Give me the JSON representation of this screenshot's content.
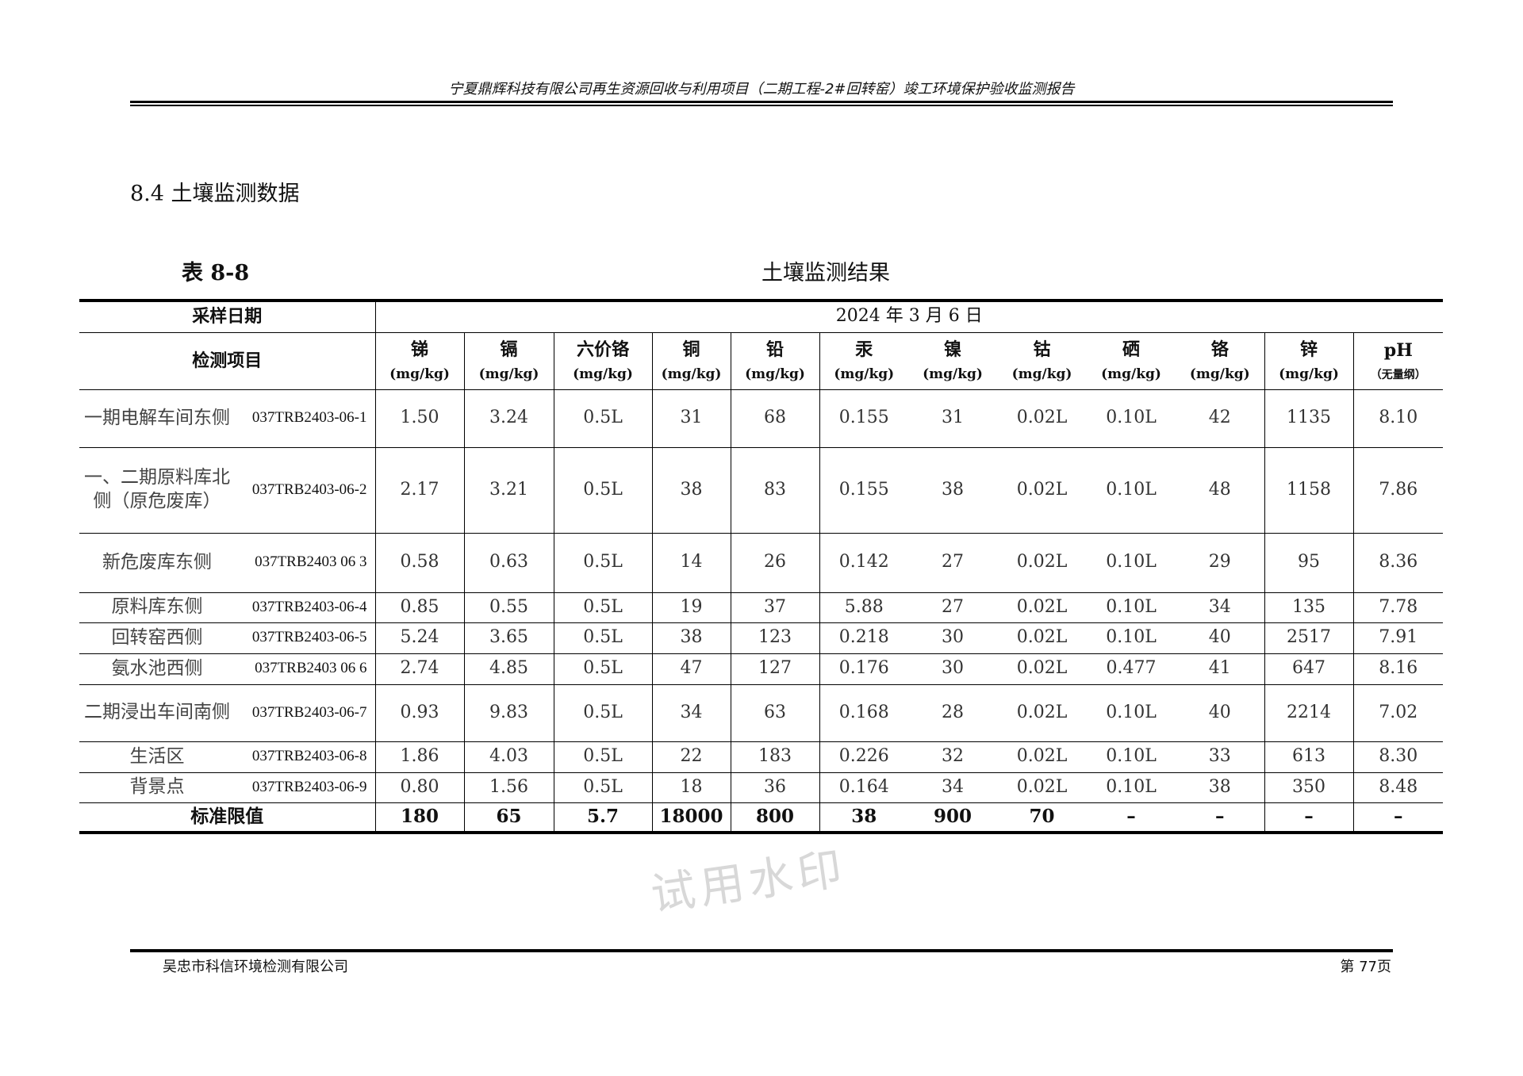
{
  "header": {
    "title": "宁夏鼎辉科技有限公司再生资源回收与利用项目（二期工程-2#回转窑）竣工环境保护验收监测报告"
  },
  "section_title": "8.4 土壤监测数据",
  "table_caption": {
    "number": "表 8-8",
    "title": "土壤监测结果"
  },
  "table": {
    "sampling_date_label": "采样日期",
    "sampling_date": "2024 年 3 月 6 日",
    "item_label": "检测项目",
    "columns": [
      {
        "name": "锑",
        "unit": "(mg/kg)"
      },
      {
        "name": "镉",
        "unit": "(mg/kg)"
      },
      {
        "name": "六价铬",
        "unit": "(mg/kg)"
      },
      {
        "name": "铜",
        "unit": "(mg/kg)"
      },
      {
        "name": "铅",
        "unit": "(mg/kg)"
      },
      {
        "name": "汞",
        "unit": "(mg/kg)"
      },
      {
        "name": "镍",
        "unit": "(mg/kg)"
      },
      {
        "name": "钴",
        "unit": "(mg/kg)"
      },
      {
        "name": "硒",
        "unit": "(mg/kg)"
      },
      {
        "name": "铬",
        "unit": "(mg/kg)"
      },
      {
        "name": "锌",
        "unit": "(mg/kg)"
      },
      {
        "name": "pH",
        "unit": "（无量纲）"
      }
    ],
    "rows": [
      {
        "location": "一期电解车间东侧",
        "code": "037TRB2403-06-1",
        "values": [
          "1.50",
          "3.24",
          "0.5L",
          "31",
          "68",
          "0.155",
          "31",
          "0.02L",
          "0.10L",
          "42",
          "1135",
          "8.10"
        ]
      },
      {
        "location": "一、二期原料库北侧（原危废库）",
        "code": "037TRB2403-06-2",
        "values": [
          "2.17",
          "3.21",
          "0.5L",
          "38",
          "83",
          "0.155",
          "38",
          "0.02L",
          "0.10L",
          "48",
          "1158",
          "7.86"
        ]
      },
      {
        "location": "新危废库东侧",
        "code": "037TRB2403 06 3",
        "values": [
          "0.58",
          "0.63",
          "0.5L",
          "14",
          "26",
          "0.142",
          "27",
          "0.02L",
          "0.10L",
          "29",
          "95",
          "8.36"
        ]
      },
      {
        "location": "原料库东侧",
        "code": "037TRB2403-06-4",
        "values": [
          "0.85",
          "0.55",
          "0.5L",
          "19",
          "37",
          "5.88",
          "27",
          "0.02L",
          "0.10L",
          "34",
          "135",
          "7.78"
        ]
      },
      {
        "location": "回转窑西侧",
        "code": "037TRB2403-06-5",
        "values": [
          "5.24",
          "3.65",
          "0.5L",
          "38",
          "123",
          "0.218",
          "30",
          "0.02L",
          "0.10L",
          "40",
          "2517",
          "7.91"
        ]
      },
      {
        "location": "氨水池西侧",
        "code": "037TRB2403 06 6",
        "values": [
          "2.74",
          "4.85",
          "0.5L",
          "47",
          "127",
          "0.176",
          "30",
          "0.02L",
          "0.477",
          "41",
          "647",
          "8.16"
        ]
      },
      {
        "location": "二期浸出车间南侧",
        "code": "037TRB2403-06-7",
        "values": [
          "0.93",
          "9.83",
          "0.5L",
          "34",
          "63",
          "0.168",
          "28",
          "0.02L",
          "0.10L",
          "40",
          "2214",
          "7.02"
        ]
      },
      {
        "location": "生活区",
        "code": "037TRB2403-06-8",
        "values": [
          "1.86",
          "4.03",
          "0.5L",
          "22",
          "183",
          "0.226",
          "32",
          "0.02L",
          "0.10L",
          "33",
          "613",
          "8.30"
        ]
      },
      {
        "location": "背景点",
        "code": "037TRB2403-06-9",
        "values": [
          "0.80",
          "1.56",
          "0.5L",
          "18",
          "36",
          "0.164",
          "34",
          "0.02L",
          "0.10L",
          "38",
          "350",
          "8.48"
        ]
      }
    ],
    "standard": {
      "label": "标准限值",
      "values": [
        "180",
        "65",
        "5.7",
        "18000",
        "800",
        "38",
        "900",
        "70",
        "–",
        "–",
        "–",
        "–"
      ]
    }
  },
  "watermark": "试用水印",
  "footer": {
    "company": "吴忠市科信环境检测有限公司",
    "page": "第 77页"
  }
}
